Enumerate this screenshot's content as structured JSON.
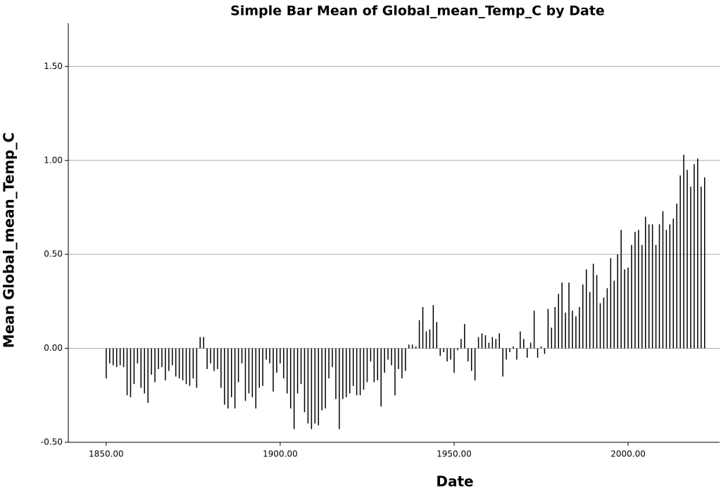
{
  "chart_data": {
    "type": "bar",
    "title": "Simple Bar Mean of Global_mean_Temp_C by Date",
    "x_label": "Date",
    "y_label": "Mean Global_mean_Temp_C",
    "color": "#000000",
    "grid": true,
    "xlim": [
      1839.1,
      2026.3
    ],
    "ylim": [
      -0.5,
      1.73
    ],
    "xticks": [
      {
        "value": 1850,
        "label": "1850.00"
      },
      {
        "value": 1900,
        "label": "1900.00"
      },
      {
        "value": 1950,
        "label": "1950.00"
      },
      {
        "value": 2000,
        "label": "2000.00"
      }
    ],
    "yticks": [
      {
        "value": -0.5,
        "label": "-0.50"
      },
      {
        "value": 0,
        "label": "0.00"
      },
      {
        "value": 0.5,
        "label": "0.50"
      },
      {
        "value": 1,
        "label": "1.00"
      },
      {
        "value": 1.5,
        "label": "1.50"
      }
    ],
    "x": [
      1850,
      1851,
      1852,
      1853,
      1854,
      1855,
      1856,
      1857,
      1858,
      1859,
      1860,
      1861,
      1862,
      1863,
      1864,
      1865,
      1866,
      1867,
      1868,
      1869,
      1870,
      1871,
      1872,
      1873,
      1874,
      1875,
      1876,
      1877,
      1878,
      1879,
      1880,
      1881,
      1882,
      1883,
      1884,
      1885,
      1886,
      1887,
      1888,
      1889,
      1890,
      1891,
      1892,
      1893,
      1894,
      1895,
      1896,
      1897,
      1898,
      1899,
      1900,
      1901,
      1902,
      1903,
      1904,
      1905,
      1906,
      1907,
      1908,
      1909,
      1910,
      1911,
      1912,
      1913,
      1914,
      1915,
      1916,
      1917,
      1918,
      1919,
      1920,
      1921,
      1922,
      1923,
      1924,
      1925,
      1926,
      1927,
      1928,
      1929,
      1930,
      1931,
      1932,
      1933,
      1934,
      1935,
      1936,
      1937,
      1938,
      1939,
      1940,
      1941,
      1942,
      1943,
      1944,
      1945,
      1946,
      1947,
      1948,
      1949,
      1950,
      1951,
      1952,
      1953,
      1954,
      1955,
      1956,
      1957,
      1958,
      1959,
      1960,
      1961,
      1962,
      1963,
      1964,
      1965,
      1966,
      1967,
      1968,
      1969,
      1970,
      1971,
      1972,
      1973,
      1974,
      1975,
      1976,
      1977,
      1978,
      1979,
      1980,
      1981,
      1982,
      1983,
      1984,
      1985,
      1986,
      1987,
      1988,
      1989,
      1990,
      1991,
      1992,
      1993,
      1994,
      1995,
      1996,
      1997,
      1998,
      1999,
      2000,
      2001,
      2002,
      2003,
      2004,
      2005,
      2006,
      2007,
      2008,
      2009,
      2010,
      2011,
      2012,
      2013,
      2014,
      2015,
      2016,
      2017,
      2018,
      2019,
      2020,
      2021,
      2022
    ],
    "values": [
      -0.16,
      -0.08,
      -0.09,
      -0.1,
      -0.09,
      -0.1,
      -0.25,
      -0.26,
      -0.19,
      -0.08,
      -0.21,
      -0.24,
      -0.29,
      -0.14,
      -0.18,
      -0.11,
      -0.1,
      -0.17,
      -0.12,
      -0.09,
      -0.15,
      -0.16,
      -0.17,
      -0.19,
      -0.2,
      -0.16,
      -0.21,
      0.06,
      0.06,
      -0.11,
      -0.08,
      -0.12,
      -0.11,
      -0.21,
      -0.3,
      -0.32,
      -0.26,
      -0.32,
      -0.18,
      -0.08,
      -0.28,
      -0.24,
      -0.26,
      -0.32,
      -0.21,
      -0.2,
      -0.06,
      -0.08,
      -0.23,
      -0.13,
      -0.08,
      -0.16,
      -0.24,
      -0.32,
      -0.43,
      -0.24,
      -0.19,
      -0.34,
      -0.4,
      -0.43,
      -0.4,
      -0.41,
      -0.33,
      -0.32,
      -0.16,
      -0.1,
      -0.27,
      -0.43,
      -0.27,
      -0.26,
      -0.24,
      -0.2,
      -0.25,
      -0.25,
      -0.22,
      -0.18,
      -0.07,
      -0.18,
      -0.17,
      -0.31,
      -0.13,
      -0.06,
      -0.09,
      -0.25,
      -0.11,
      -0.16,
      -0.12,
      0.02,
      0.02,
      0.01,
      0.15,
      0.22,
      0.09,
      0.1,
      0.23,
      0.14,
      -0.04,
      -0.02,
      -0.07,
      -0.06,
      -0.13,
      -0.01,
      0.05,
      0.13,
      -0.07,
      -0.12,
      -0.17,
      0.06,
      0.08,
      0.07,
      0.03,
      0.06,
      0.05,
      0.08,
      -0.15,
      -0.06,
      -0.02,
      0.01,
      -0.06,
      0.09,
      0.05,
      -0.05,
      0.03,
      0.2,
      -0.05,
      0.01,
      -0.03,
      0.21,
      0.11,
      0.22,
      0.29,
      0.35,
      0.19,
      0.35,
      0.2,
      0.17,
      0.22,
      0.34,
      0.42,
      0.3,
      0.45,
      0.39,
      0.24,
      0.27,
      0.32,
      0.48,
      0.36,
      0.5,
      0.63,
      0.42,
      0.43,
      0.55,
      0.62,
      0.63,
      0.55,
      0.7,
      0.66,
      0.66,
      0.55,
      0.66,
      0.73,
      0.63,
      0.66,
      0.69,
      0.77,
      0.92,
      1.03,
      0.95,
      0.86,
      0.98,
      1.01,
      0.86,
      0.91
    ]
  }
}
